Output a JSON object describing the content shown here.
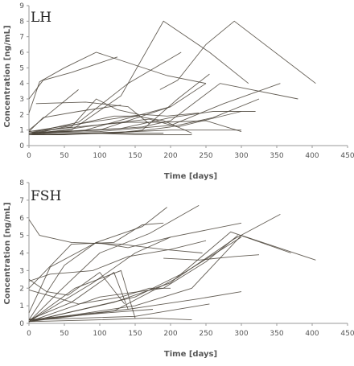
{
  "chart_data": [
    {
      "type": "line",
      "title": "LH",
      "xlabel": "Time [days]",
      "ylabel": "Concentration [ng/mL]",
      "xlim": [
        0,
        450
      ],
      "ylim": [
        0,
        9
      ],
      "xticks": [
        0,
        50,
        100,
        150,
        200,
        250,
        300,
        350,
        400,
        450
      ],
      "yticks": [
        0,
        1,
        2,
        3,
        4,
        5,
        6,
        7,
        8,
        9
      ],
      "grid": false,
      "color": "#4a4338",
      "series": [
        {
          "x": [
            0,
            15,
            50,
            95,
            195,
            250
          ],
          "y": [
            2.1,
            4.1,
            5.0,
            6.0,
            4.5,
            4.0
          ]
        },
        {
          "x": [
            0,
            20,
            60,
            125
          ],
          "y": [
            3.0,
            4.2,
            4.7,
            5.7
          ]
        },
        {
          "x": [
            0,
            70
          ],
          "y": [
            1.0,
            3.6
          ]
        },
        {
          "x": [
            0,
            20,
            70,
            130
          ],
          "y": [
            0.9,
            1.8,
            2.2,
            2.6
          ]
        },
        {
          "x": [
            10,
            80,
            140,
            170
          ],
          "y": [
            2.7,
            2.8,
            2.5,
            1.4
          ]
        },
        {
          "x": [
            0,
            60,
            95,
            125,
            155
          ],
          "y": [
            0.8,
            1.2,
            3.0,
            2.3,
            2.0
          ]
        },
        {
          "x": [
            0,
            60,
            130,
            190,
            255,
            310
          ],
          "y": [
            0.8,
            1.0,
            3.2,
            8.0,
            6.0,
            4.0
          ]
        },
        {
          "x": [
            0,
            70,
            140,
            215
          ],
          "y": [
            0.8,
            1.5,
            4.0,
            6.0
          ]
        },
        {
          "x": [
            185,
            210,
            250,
            290,
            405
          ],
          "y": [
            3.6,
            4.2,
            6.5,
            8.0,
            4.0
          ]
        },
        {
          "x": [
            0,
            100,
            200,
            250
          ],
          "y": [
            0.8,
            1.0,
            2.5,
            4.0
          ]
        },
        {
          "x": [
            0,
            100,
            160,
            195,
            240
          ],
          "y": [
            0.9,
            1.6,
            2.0,
            1.9,
            2.1
          ]
        },
        {
          "x": [
            0,
            100,
            150,
            200,
            275,
            355
          ],
          "y": [
            0.8,
            0.9,
            1.1,
            1.3,
            2.7,
            4.0
          ]
        },
        {
          "x": [
            0,
            100,
            160,
            200,
            270,
            380
          ],
          "y": [
            0.8,
            1.0,
            1.2,
            1.6,
            4.0,
            3.0
          ]
        },
        {
          "x": [
            0,
            150,
            200,
            260,
            325
          ],
          "y": [
            0.7,
            0.9,
            1.2,
            1.8,
            3.0
          ]
        },
        {
          "x": [
            0,
            120,
            160,
            210,
            255
          ],
          "y": [
            0.7,
            0.8,
            1.0,
            3.0,
            4.6
          ]
        },
        {
          "x": [
            0,
            100,
            200,
            300
          ],
          "y": [
            0.7,
            0.8,
            1.0,
            1.0
          ]
        },
        {
          "x": [
            0,
            110,
            170,
            210,
            300
          ],
          "y": [
            0.7,
            1.4,
            1.7,
            1.2,
            2.2
          ]
        },
        {
          "x": [
            0,
            130,
            200,
            260,
            320
          ],
          "y": [
            0.8,
            1.1,
            1.8,
            2.2,
            2.2
          ]
        },
        {
          "x": [
            0,
            120,
            150,
            190,
            230
          ],
          "y": [
            0.7,
            1.9,
            1.9,
            1.6,
            0.8
          ]
        },
        {
          "x": [
            0,
            80,
            135,
            200
          ],
          "y": [
            0.7,
            1.0,
            1.7,
            2.5
          ]
        },
        {
          "x": [
            0,
            90,
            140,
            190,
            250,
            300
          ],
          "y": [
            0.9,
            1.3,
            1.5,
            1.5,
            1.6,
            0.9
          ]
        },
        {
          "x": [
            0,
            50,
            100,
            150,
            190
          ],
          "y": [
            0.7,
            0.7,
            0.8,
            0.8,
            0.8
          ]
        },
        {
          "x": [
            0,
            40,
            90,
            150,
            230
          ],
          "y": [
            0.7,
            0.7,
            0.8,
            0.7,
            0.7
          ]
        }
      ]
    },
    {
      "type": "line",
      "title": "FSH",
      "xlabel": "Time [days]",
      "ylabel": "Concentration [ng/mL]",
      "xlim": [
        0,
        450
      ],
      "ylim": [
        0,
        8
      ],
      "xticks": [
        0,
        50,
        100,
        150,
        200,
        250,
        300,
        350,
        400,
        450
      ],
      "yticks": [
        0,
        1,
        2,
        3,
        4,
        5,
        6,
        7,
        8
      ],
      "grid": false,
      "color": "#4a4338",
      "series": [
        {
          "x": [
            0,
            15,
            60,
            130,
            190,
            245
          ],
          "y": [
            5.9,
            5.0,
            4.6,
            4.5,
            4.2,
            4.0
          ]
        },
        {
          "x": [
            0,
            30,
            95,
            160,
            195
          ],
          "y": [
            0.6,
            3.2,
            4.6,
            5.5,
            6.6
          ]
        },
        {
          "x": [
            0,
            45,
            100,
            170,
            240
          ],
          "y": [
            0.1,
            1.9,
            4.0,
            5.1,
            6.7
          ]
        },
        {
          "x": [
            0,
            50,
            95,
            140,
            200
          ],
          "y": [
            0.2,
            3.3,
            4.6,
            4.3,
            4.9
          ]
        },
        {
          "x": [
            0,
            60,
            120,
            160,
            190
          ],
          "y": [
            2.0,
            4.5,
            4.6,
            5.6,
            5.7
          ]
        },
        {
          "x": [
            0,
            65,
            130,
            150
          ],
          "y": [
            0.1,
            2.0,
            3.0,
            0.3
          ]
        },
        {
          "x": [
            0,
            60,
            120,
            140
          ],
          "y": [
            0.2,
            1.2,
            2.9,
            0.8
          ]
        },
        {
          "x": [
            0,
            30,
            90,
            140,
            200,
            250
          ],
          "y": [
            2.4,
            2.8,
            3.0,
            3.8,
            4.2,
            4.7
          ]
        },
        {
          "x": [
            0,
            25,
            55,
            100,
            135
          ],
          "y": [
            2.5,
            1.8,
            1.6,
            2.9,
            1.1
          ]
        },
        {
          "x": [
            0,
            90,
            150,
            200,
            300
          ],
          "y": [
            0.1,
            2.3,
            4.0,
            4.9,
            5.7
          ]
        },
        {
          "x": [
            0,
            100,
            190,
            250,
            295
          ],
          "y": [
            0.1,
            1.5,
            2.0,
            3.5,
            5.0
          ]
        },
        {
          "x": [
            0,
            120,
            200,
            285,
            370
          ],
          "y": [
            0.1,
            1.2,
            2.3,
            5.2,
            4.0
          ]
        },
        {
          "x": [
            0,
            120,
            210,
            290,
            355
          ],
          "y": [
            0.1,
            0.7,
            2.6,
            4.8,
            6.2
          ]
        },
        {
          "x": [
            0,
            150,
            220,
            300
          ],
          "y": [
            0.1,
            1.5,
            2.9,
            4.9
          ]
        },
        {
          "x": [
            0,
            150,
            230,
            300,
            405
          ],
          "y": [
            0.1,
            1.0,
            2.0,
            5.0,
            3.6
          ]
        },
        {
          "x": [
            190,
            240,
            290,
            325
          ],
          "y": [
            3.7,
            3.6,
            3.8,
            3.9
          ]
        },
        {
          "x": [
            0,
            140,
            240,
            300
          ],
          "y": [
            0.2,
            0.8,
            1.4,
            1.8
          ]
        },
        {
          "x": [
            0,
            150,
            255
          ],
          "y": [
            0.2,
            0.4,
            1.1
          ]
        },
        {
          "x": [
            0,
            100,
            170,
            230
          ],
          "y": [
            0.1,
            0.2,
            0.3,
            0.2
          ]
        },
        {
          "x": [
            0,
            110,
            175
          ],
          "y": [
            0.2,
            0.6,
            0.8
          ]
        },
        {
          "x": [
            0,
            70,
            130,
            170,
            200
          ],
          "y": [
            1.9,
            1.1,
            1.5,
            2.0,
            2.0
          ]
        }
      ]
    }
  ]
}
